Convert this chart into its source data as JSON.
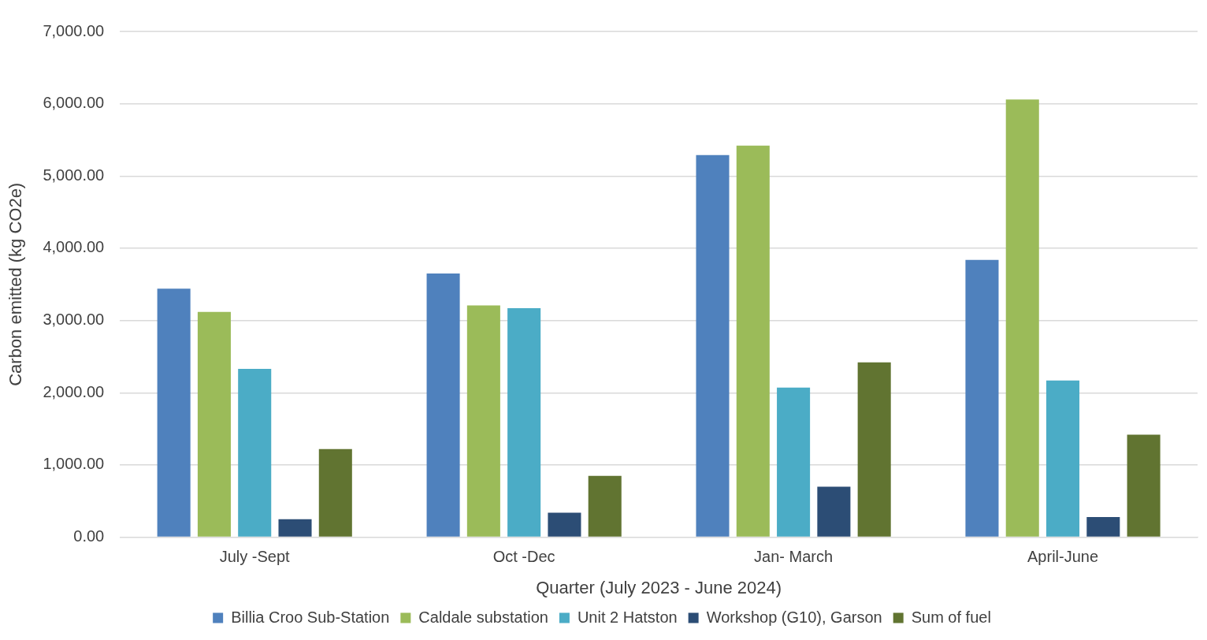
{
  "chart_data": {
    "type": "bar",
    "xlabel": "Quarter (July 2023 - June 2024)",
    "ylabel": "Carbon emitted (kg CO2e)",
    "categories": [
      "July -Sept",
      "Oct -Dec",
      "Jan- March",
      "April-June"
    ],
    "series": [
      {
        "name": "Billia Croo Sub-Station",
        "color": "#4f81bd",
        "values": [
          3440,
          3650,
          5290,
          3840
        ]
      },
      {
        "name": "Caldale substation",
        "color": "#9bbb59",
        "values": [
          3120,
          3210,
          5420,
          6060
        ]
      },
      {
        "name": "Unit 2 Hatston",
        "color": "#4bacc6",
        "values": [
          2330,
          3170,
          2070,
          2170
        ]
      },
      {
        "name": "Workshop (G10), Garson",
        "color": "#2c4d75",
        "values": [
          250,
          340,
          700,
          280
        ]
      },
      {
        "name": "Sum of fuel",
        "color": "#617431",
        "values": [
          1220,
          850,
          2420,
          1420
        ]
      }
    ],
    "ylim": [
      0,
      7000
    ],
    "yticks": [
      {
        "value": 0,
        "label": "0.00"
      },
      {
        "value": 1000,
        "label": "1,000.00"
      },
      {
        "value": 2000,
        "label": "2,000.00"
      },
      {
        "value": 3000,
        "label": "3,000.00"
      },
      {
        "value": 4000,
        "label": "4,000.00"
      },
      {
        "value": 5000,
        "label": "5,000.00"
      },
      {
        "value": 6000,
        "label": "6,000.00"
      },
      {
        "value": 7000,
        "label": "7,000.00"
      }
    ],
    "grid": "y",
    "legend": "bottom"
  }
}
